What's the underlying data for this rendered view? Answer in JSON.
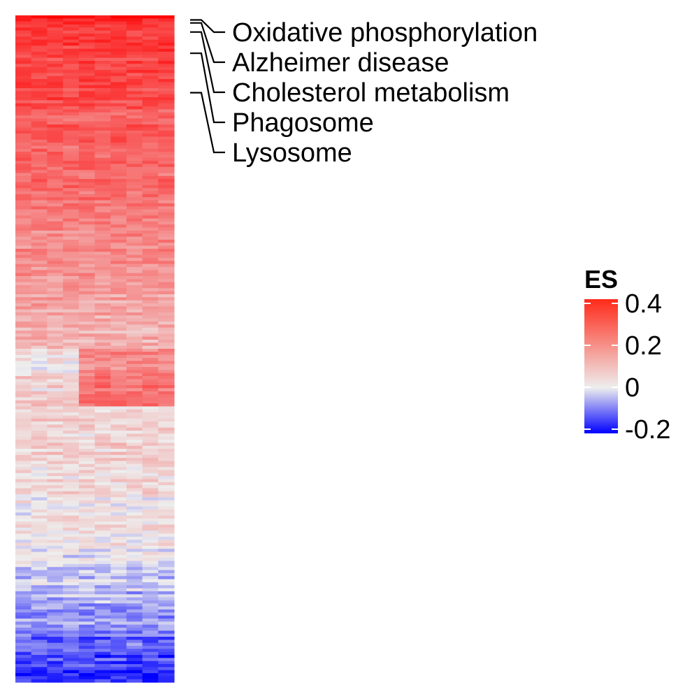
{
  "chart_data": {
    "type": "heatmap",
    "n_columns": 10,
    "n_rows": 220,
    "row_profile": [
      {
        "to_row": 2,
        "from": 0.38,
        "to": 0.34
      },
      {
        "to_row": 30,
        "from": 0.32,
        "to": 0.28
      },
      {
        "to_row": 80,
        "from": 0.27,
        "to": 0.17
      },
      {
        "to_row": 110,
        "from": 0.16,
        "to": 0.1
      },
      {
        "to_row": 118,
        "from": 0.02,
        "to": 0.0
      },
      {
        "to_row": 140,
        "from": 0.05,
        "to": 0.05
      },
      {
        "to_row": 180,
        "from": 0.06,
        "to": 0.0
      },
      {
        "to_row": 205,
        "from": -0.02,
        "to": -0.1
      },
      {
        "to_row": 220,
        "from": -0.12,
        "to": -0.2
      }
    ],
    "annotated_pathways": [
      {
        "label": "Oxidative phosphorylation",
        "row": 1
      },
      {
        "label": "Alzheimer disease",
        "row": 2
      },
      {
        "label": "Cholesterol metabolism",
        "row": 5
      },
      {
        "label": "Phagosome",
        "row": 12
      },
      {
        "label": "Lysosome",
        "row": 25
      }
    ],
    "legend": {
      "title": "ES",
      "range": [
        -0.22,
        0.42
      ],
      "ticks": [
        {
          "value": 0.4,
          "label": "0.4"
        },
        {
          "value": 0.2,
          "label": "0.2"
        },
        {
          "value": 0.0,
          "label": "0"
        },
        {
          "value": -0.2,
          "label": "-0.2"
        }
      ],
      "colors": {
        "low": "#0000ff",
        "mid": "#eeeeee",
        "high": "#ff0000"
      }
    }
  }
}
